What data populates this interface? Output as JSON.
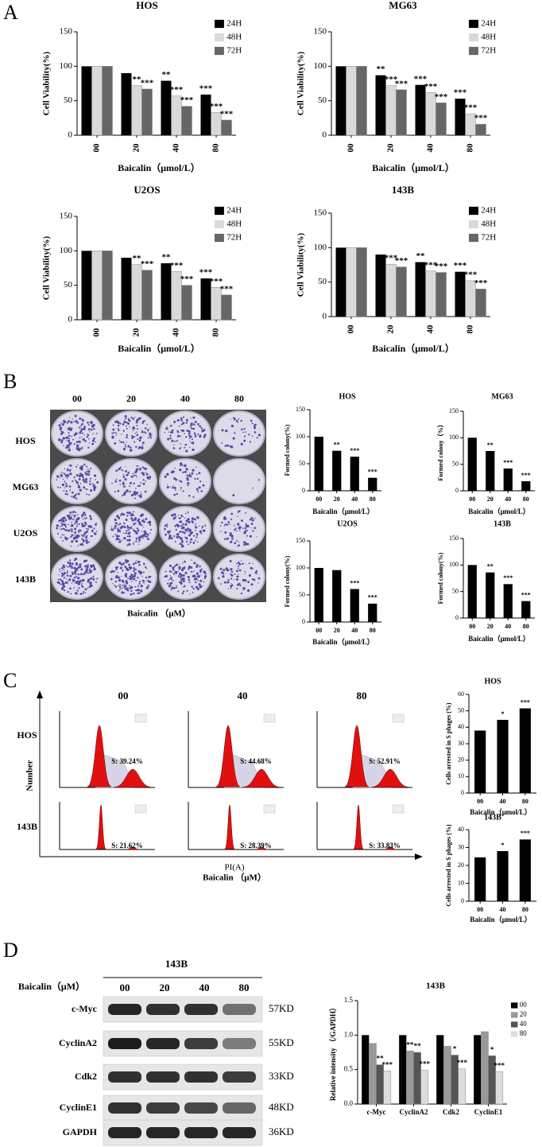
{
  "panel_labels": [
    "A",
    "B",
    "C",
    "D"
  ],
  "chart_data": [
    {
      "type": "bar",
      "title": "HOS",
      "ylabel": "Cell Viability(%)",
      "xlabel": "Baicalin（μmol/L）",
      "categories": [
        "00",
        "20",
        "40",
        "80"
      ],
      "ylim": [
        0,
        150
      ],
      "yticks": [
        0,
        50,
        100,
        150
      ],
      "series": [
        {
          "name": "24H",
          "color": "#000000",
          "values": [
            100,
            90,
            79,
            59
          ],
          "significance": [
            null,
            null,
            "**",
            "***"
          ]
        },
        {
          "name": "48H",
          "color": "#d9d9d9",
          "values": [
            100,
            72,
            57,
            33
          ],
          "significance": [
            null,
            "**",
            "***",
            "***"
          ]
        },
        {
          "name": "72H",
          "color": "#666666",
          "values": [
            100,
            67,
            42,
            22
          ],
          "significance": [
            null,
            "***",
            "***",
            "***"
          ]
        }
      ]
    },
    {
      "type": "bar",
      "title": "MG63",
      "ylabel": "Cell Viability(%)",
      "xlabel": "Baicalin（μmol/L）",
      "categories": [
        "00",
        "20",
        "40",
        "80"
      ],
      "ylim": [
        0,
        150
      ],
      "yticks": [
        0,
        50,
        100,
        150
      ],
      "series": [
        {
          "name": "24H",
          "color": "#000000",
          "values": [
            100,
            87,
            73,
            53
          ],
          "significance": [
            null,
            "**",
            "***",
            "***"
          ]
        },
        {
          "name": "48H",
          "color": "#d9d9d9",
          "values": [
            100,
            72,
            62,
            31
          ],
          "significance": [
            null,
            "***",
            "***",
            "***"
          ]
        },
        {
          "name": "72H",
          "color": "#666666",
          "values": [
            100,
            66,
            47,
            16
          ],
          "significance": [
            null,
            "***",
            "***",
            "***"
          ]
        }
      ]
    },
    {
      "type": "bar",
      "title": "U2OS",
      "ylabel": "Cell Viability(%)",
      "xlabel": "Baicalin（μmol/L）",
      "categories": [
        "00",
        "20",
        "40",
        "80"
      ],
      "ylim": [
        0,
        150
      ],
      "yticks": [
        0,
        50,
        100,
        150
      ],
      "series": [
        {
          "name": "24H",
          "color": "#000000",
          "values": [
            100,
            90,
            82,
            60
          ],
          "significance": [
            null,
            null,
            "**",
            "***"
          ]
        },
        {
          "name": "48H",
          "color": "#d9d9d9",
          "values": [
            100,
            80,
            70,
            47
          ],
          "significance": [
            null,
            "**",
            "***",
            "***"
          ]
        },
        {
          "name": "72H",
          "color": "#666666",
          "values": [
            100,
            72,
            50,
            36
          ],
          "significance": [
            null,
            "***",
            "***",
            "***"
          ]
        }
      ]
    },
    {
      "type": "bar",
      "title": "143B",
      "ylabel": "Cell Viability(%)",
      "xlabel": "Baicalin（μmol/L）",
      "categories": [
        "00",
        "20",
        "40",
        "80"
      ],
      "ylim": [
        0,
        150
      ],
      "yticks": [
        0,
        50,
        100,
        150
      ],
      "series": [
        {
          "name": "24H",
          "color": "#000000",
          "values": [
            100,
            90,
            79,
            65
          ],
          "significance": [
            null,
            null,
            "**",
            "***"
          ]
        },
        {
          "name": "48H",
          "color": "#d9d9d9",
          "values": [
            100,
            76,
            66,
            52
          ],
          "significance": [
            null,
            "***",
            "***",
            "***"
          ]
        },
        {
          "name": "72H",
          "color": "#666666",
          "values": [
            100,
            72,
            64,
            40
          ],
          "significance": [
            null,
            "***",
            "***",
            "***"
          ]
        }
      ]
    },
    {
      "type": "bar",
      "title": "HOS",
      "ylabel": "Formed colony(%)",
      "xlabel": "Baicalin（μmol/L）",
      "categories": [
        "00",
        "20",
        "40",
        "80"
      ],
      "ylim": [
        0,
        150
      ],
      "yticks": [
        0,
        50,
        100,
        150
      ],
      "color": "#000000",
      "values": [
        100,
        74,
        63,
        24
      ],
      "significance": [
        null,
        "**",
        "***",
        "***"
      ]
    },
    {
      "type": "bar",
      "title": "MG63",
      "ylabel": "Formed colony（%）",
      "xlabel": "Baicalin（μmol/L）",
      "categories": [
        "00",
        "20",
        "40",
        "80"
      ],
      "ylim": [
        0,
        150
      ],
      "yticks": [
        0,
        50,
        100,
        150
      ],
      "color": "#000000",
      "values": [
        100,
        75,
        42,
        18
      ],
      "significance": [
        null,
        "**",
        "***",
        "***"
      ]
    },
    {
      "type": "bar",
      "title": "U2OS",
      "ylabel": "Formed colony(%)",
      "xlabel": "Baicalin（μmol/L）",
      "categories": [
        "00",
        "20",
        "40",
        "80"
      ],
      "ylim": [
        0,
        150
      ],
      "yticks": [
        0,
        50,
        100,
        150
      ],
      "color": "#000000",
      "values": [
        100,
        96,
        61,
        34
      ],
      "significance": [
        null,
        null,
        "***",
        "***"
      ]
    },
    {
      "type": "bar",
      "title": "143B",
      "ylabel": "Formed colony(%)",
      "xlabel": "Baicalin（μmol/L）",
      "categories": [
        "00",
        "20",
        "40",
        "80"
      ],
      "ylim": [
        0,
        150
      ],
      "yticks": [
        0,
        50,
        100,
        150
      ],
      "color": "#000000",
      "values": [
        100,
        86,
        64,
        32
      ],
      "significance": [
        null,
        "**",
        "***",
        "***"
      ]
    },
    {
      "type": "bar",
      "title": "HOS",
      "ylabel": "Cells arrested in S phages (%)",
      "xlabel": "Baicalin（μmol/L）",
      "categories": [
        "00",
        "40",
        "80"
      ],
      "ylim": [
        0,
        60
      ],
      "yticks": [
        0,
        10,
        20,
        30,
        40,
        50,
        60
      ],
      "color": "#000000",
      "values": [
        38,
        44.5,
        51.5
      ],
      "significance": [
        null,
        "*",
        "***"
      ]
    },
    {
      "type": "bar",
      "title": "143B",
      "ylabel": "Cells arrested in S phages (%)",
      "xlabel": "Baicalin（μmol/L）",
      "categories": [
        "00",
        "40",
        "80"
      ],
      "ylim": [
        0,
        40
      ],
      "yticks": [
        0,
        10,
        20,
        30,
        40
      ],
      "color": "#000000",
      "values": [
        24.5,
        28,
        34.5
      ],
      "significance": [
        null,
        "*",
        "***"
      ]
    },
    {
      "type": "bar",
      "title": "143B",
      "ylabel": "Relative intensity （/GAPDH）",
      "categories": [
        "c-Myc",
        "CyclinA2",
        "Cdk2",
        "CyclinE1"
      ],
      "ylim": [
        0,
        1.5
      ],
      "yticks": [
        {
          "value": 0,
          "label": "0.0"
        },
        0.5,
        {
          "value": 1,
          "label": "1.0"
        },
        1.5
      ],
      "series": [
        {
          "name": "00",
          "color": "#000000",
          "values": [
            1,
            1,
            1,
            1
          ],
          "significance": [
            null,
            null,
            null,
            null
          ]
        },
        {
          "name": "20",
          "color": "#999999",
          "values": [
            0.88,
            0.77,
            0.84,
            1.05
          ],
          "significance": [
            null,
            "**",
            null,
            null
          ]
        },
        {
          "name": "40",
          "color": "#555555",
          "values": [
            0.57,
            0.75,
            0.71,
            0.7
          ],
          "significance": [
            "**",
            "**",
            "*",
            "*"
          ]
        },
        {
          "name": "80",
          "color": "#dddddd",
          "values": [
            0.48,
            0.49,
            0.51,
            0.47
          ],
          "significance": [
            "***",
            "***",
            "***",
            "***"
          ]
        }
      ]
    }
  ],
  "colony": {
    "columns": [
      "00",
      "20",
      "40",
      "80"
    ],
    "rows": [
      "HOS",
      "MG63",
      "U2OS",
      "143B"
    ],
    "xlabel": "Baicalin （μM）"
  },
  "flow": {
    "columns": [
      "00",
      "40",
      "80"
    ],
    "rows": [
      "HOS",
      "143B"
    ],
    "labels": [
      [
        "S: 39.24%",
        "S: 44.68%",
        "S: 52.91%"
      ],
      [
        "S: 21.62%",
        "S: 28.39%",
        "S: 33.83%"
      ]
    ],
    "ylabel": "Number",
    "xlabel": "PI(A)",
    "treatment": "Baicalin （μM）"
  },
  "western": {
    "title": "143B",
    "treatment": "Baicalin（μM）",
    "doses": [
      "00",
      "20",
      "40",
      "80"
    ],
    "rows": [
      {
        "protein": "c-Myc",
        "size": "57KD"
      },
      {
        "protein": "CyclinA2",
        "size": "55KD"
      },
      {
        "protein": "Cdk2",
        "size": "33KD"
      },
      {
        "protein": "CyclinE1",
        "size": "48KD"
      },
      {
        "protein": "GAPDH",
        "size": "36KD"
      }
    ]
  }
}
